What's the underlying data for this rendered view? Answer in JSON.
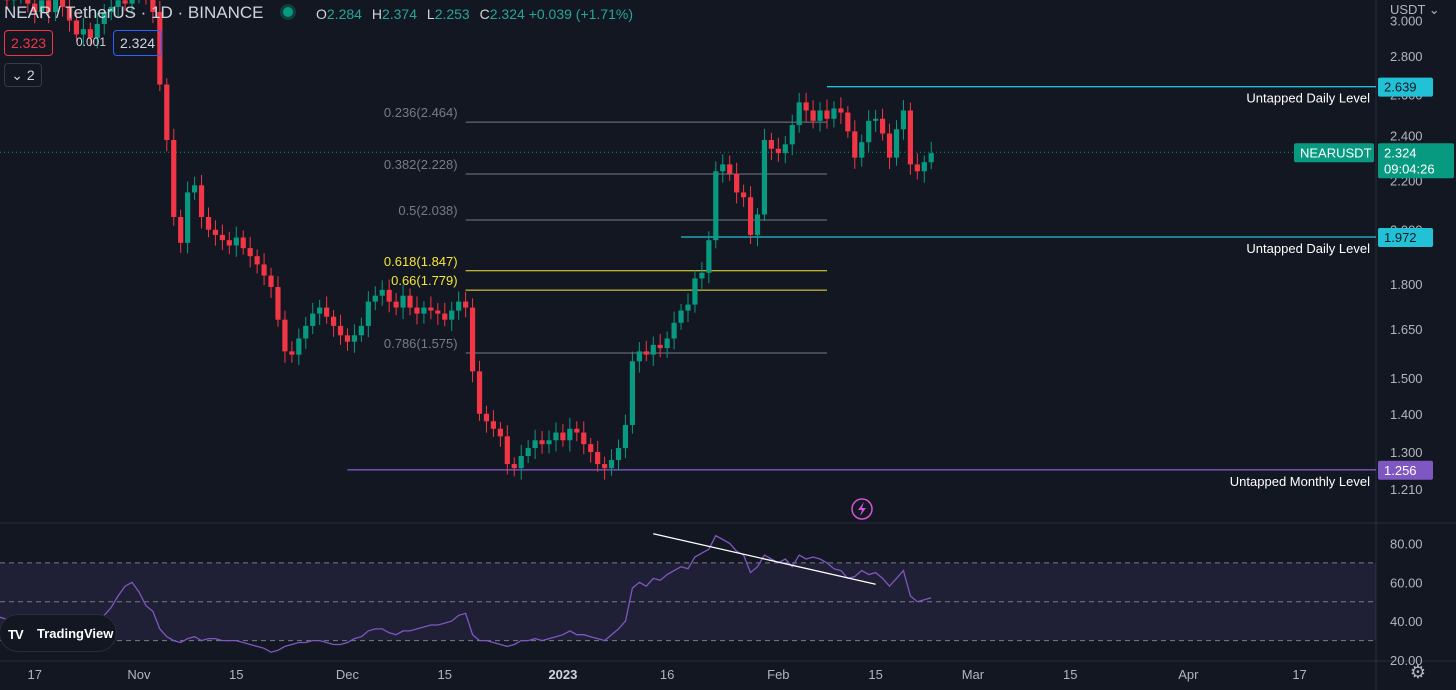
{
  "header": {
    "symbol": "NEAR / TetherUS · 1D · BINANCE",
    "open_label": "O",
    "open": "2.284",
    "high_label": "H",
    "high": "2.374",
    "low_label": "L",
    "low": "2.253",
    "close_label": "C",
    "close": "2.324",
    "change": "+0.039 (+1.71%)"
  },
  "trade": {
    "sell": "2.323",
    "spread": "0.001",
    "buy": "2.324",
    "indicators_toggle": "2"
  },
  "currency": "USDT",
  "colors": {
    "up": "#089981",
    "down": "#f23645",
    "level": "#22c2d6",
    "monthly": "#7e57c2",
    "rsi": "#7e57c2",
    "fib": "#787b86",
    "fib_golden": "#f5e63a",
    "background": "#131722"
  },
  "branding": {
    "logo_text": "TradingView"
  },
  "settings_icon": "gear-icon",
  "chart_data": [
    {
      "type": "candlestick",
      "title": "NEAR / TetherUS · 1D · BINANCE",
      "ylim": [
        1.18,
        3.05
      ],
      "y_scale": "log",
      "y_ticks": [
        "3.000",
        "2.800",
        "2.600",
        "2.400",
        "2.200",
        "2.000",
        "1.800",
        "1.650",
        "1.500",
        "1.400",
        "1.300",
        "1.210"
      ],
      "x_ticks": [
        "17",
        "Nov",
        "15",
        "Dec",
        "15",
        "2023",
        "16",
        "Feb",
        "15",
        "Mar",
        "15",
        "Apr",
        "17"
      ],
      "x_tick_dates": [
        "2022-10-17",
        "2022-11-01",
        "2022-11-15",
        "2022-12-01",
        "2022-12-15",
        "2023-01-01",
        "2023-01-16",
        "2023-02-01",
        "2023-02-15",
        "2023-03-01",
        "2023-03-15",
        "2023-04-01",
        "2023-04-17"
      ],
      "x_range": [
        "2022-10-12",
        "2023-04-28"
      ],
      "candle_start_date": "2022-10-12",
      "closes": [
        3.2,
        3.12,
        3.16,
        3.18,
        3.1,
        3.05,
        3.12,
        3.05,
        3.15,
        3.08,
        3.0,
        2.92,
        2.95,
        2.9,
        2.98,
        3.05,
        3.08,
        3.12,
        3.1,
        3.16,
        3.2,
        3.15,
        3.05,
        2.65,
        2.38,
        2.05,
        1.95,
        2.15,
        2.18,
        2.05,
        2.0,
        1.98,
        1.96,
        1.94,
        1.97,
        1.93,
        1.9,
        1.87,
        1.83,
        1.79,
        1.68,
        1.58,
        1.57,
        1.62,
        1.66,
        1.7,
        1.72,
        1.69,
        1.66,
        1.63,
        1.61,
        1.63,
        1.66,
        1.74,
        1.76,
        1.78,
        1.74,
        1.72,
        1.76,
        1.72,
        1.7,
        1.72,
        1.71,
        1.7,
        1.68,
        1.71,
        1.74,
        1.72,
        1.52,
        1.4,
        1.38,
        1.36,
        1.34,
        1.27,
        1.26,
        1.29,
        1.31,
        1.33,
        1.32,
        1.33,
        1.35,
        1.33,
        1.36,
        1.35,
        1.32,
        1.3,
        1.27,
        1.26,
        1.28,
        1.31,
        1.37,
        1.55,
        1.58,
        1.57,
        1.6,
        1.59,
        1.62,
        1.67,
        1.71,
        1.73,
        1.82,
        1.84,
        1.96,
        2.24,
        2.27,
        2.23,
        2.15,
        2.13,
        1.98,
        2.06,
        2.38,
        2.34,
        2.32,
        2.36,
        2.45,
        2.56,
        2.52,
        2.47,
        2.52,
        2.48,
        2.53,
        2.51,
        2.42,
        2.3,
        2.37,
        2.47,
        2.48,
        2.41,
        2.3,
        2.43,
        2.52,
        2.27,
        2.24,
        2.28,
        2.32
      ],
      "levels": [
        {
          "label": "Untapped Daily Level",
          "value": 2.639,
          "price_tag": "2.639",
          "from_date": "2023-02-08"
        },
        {
          "label": "Untapped Daily Level",
          "value": 1.972,
          "price_tag": "1.972",
          "from_date": "2023-01-18"
        },
        {
          "label": "Untapped Monthly Level",
          "value": 1.256,
          "price_tag": "1.256",
          "from_date": "2022-12-01"
        }
      ],
      "fibonacci": {
        "from_date": "2022-12-18",
        "to_date": "2023-02-08",
        "levels": [
          {
            "label": "0.236(2.464)",
            "value": 2.464
          },
          {
            "label": "0.382(2.228)",
            "value": 2.228
          },
          {
            "label": "0.5(2.038)",
            "value": 2.038
          },
          {
            "label": "0.618(1.847)",
            "value": 1.847,
            "highlight": true
          },
          {
            "label": "0.66(1.779)",
            "value": 1.779,
            "highlight": true
          },
          {
            "label": "0.786(1.575)",
            "value": 1.575
          }
        ]
      },
      "last_price": {
        "value": 2.324,
        "symbol": "NEARUSDT",
        "price": "2.324",
        "countdown": "09:04:26"
      }
    },
    {
      "type": "line",
      "series": [
        {
          "values": [
            42,
            41,
            40,
            39,
            38,
            37,
            36,
            34,
            35,
            37,
            39,
            40,
            41,
            42,
            41,
            43,
            47,
            53,
            58,
            60,
            55,
            48,
            45,
            36,
            32,
            30,
            29,
            31,
            32,
            30,
            31,
            31,
            30,
            30,
            30,
            29,
            28,
            27,
            26,
            24,
            25,
            27,
            28,
            29,
            29,
            30,
            30,
            29,
            28,
            28,
            29,
            31,
            32,
            35,
            36,
            36,
            34,
            33,
            35,
            35,
            36,
            37,
            38,
            38,
            39,
            40,
            43,
            44,
            33,
            30,
            30,
            29,
            28,
            27,
            28,
            30,
            30,
            31,
            30,
            31,
            32,
            33,
            35,
            33,
            33,
            32,
            31,
            30,
            33,
            36,
            40,
            57,
            60,
            58,
            62,
            61,
            64,
            66,
            68,
            67,
            73,
            75,
            77,
            84,
            82,
            80,
            76,
            74,
            65,
            68,
            74,
            72,
            70,
            72,
            68,
            74,
            72,
            73,
            72,
            70,
            67,
            66,
            62,
            63,
            66,
            64,
            65,
            62,
            58,
            62,
            66,
            53,
            50,
            51,
            52
          ]
        }
      ],
      "ylim": [
        20,
        90
      ],
      "y_ticks": [
        "80.00",
        "60.00",
        "40.00",
        "20.00"
      ],
      "bands": [
        70,
        50,
        30
      ],
      "trendline": {
        "from": [
          "2023-01-14",
          85
        ],
        "to": [
          "2023-02-15",
          59
        ]
      }
    }
  ]
}
